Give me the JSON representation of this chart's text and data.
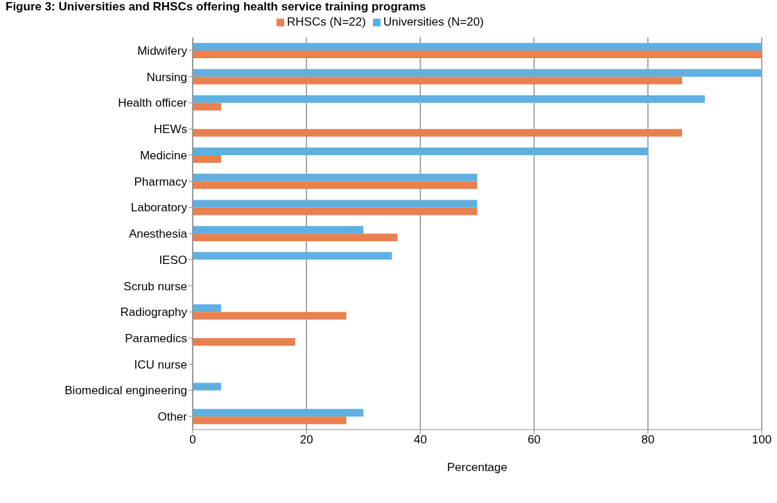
{
  "chart_data": {
    "type": "bar",
    "orientation": "horizontal",
    "title": "Figure 3: Universities and RHSCs offering health service training programs",
    "xlabel": "Percentage",
    "categories": [
      "Midwifery",
      "Nursing",
      "Health officer",
      "HEWs",
      "Medicine",
      "Pharmacy",
      "Laboratory",
      "Anesthesia",
      "IESO",
      "Scrub nurse",
      "Radiography",
      "Paramedics",
      "ICU nurse",
      "Biomedical engineering",
      "Other"
    ],
    "series": [
      {
        "name": "Universities (N=20)",
        "color": "#5eb0e2",
        "values": [
          100,
          100,
          90,
          0,
          80,
          50,
          50,
          30,
          35,
          0,
          5,
          0,
          0,
          5,
          30
        ]
      },
      {
        "name": "RHSCs (N=22)",
        "color": "#e9804f",
        "values": [
          100,
          86,
          5,
          86,
          5,
          50,
          50,
          36,
          0,
          0,
          27,
          18,
          0,
          0,
          27
        ]
      }
    ],
    "xlim": [
      0,
      100
    ],
    "xticks": [
      0,
      20,
      40,
      60,
      80,
      100
    ],
    "grid": "x",
    "legend": "top"
  }
}
